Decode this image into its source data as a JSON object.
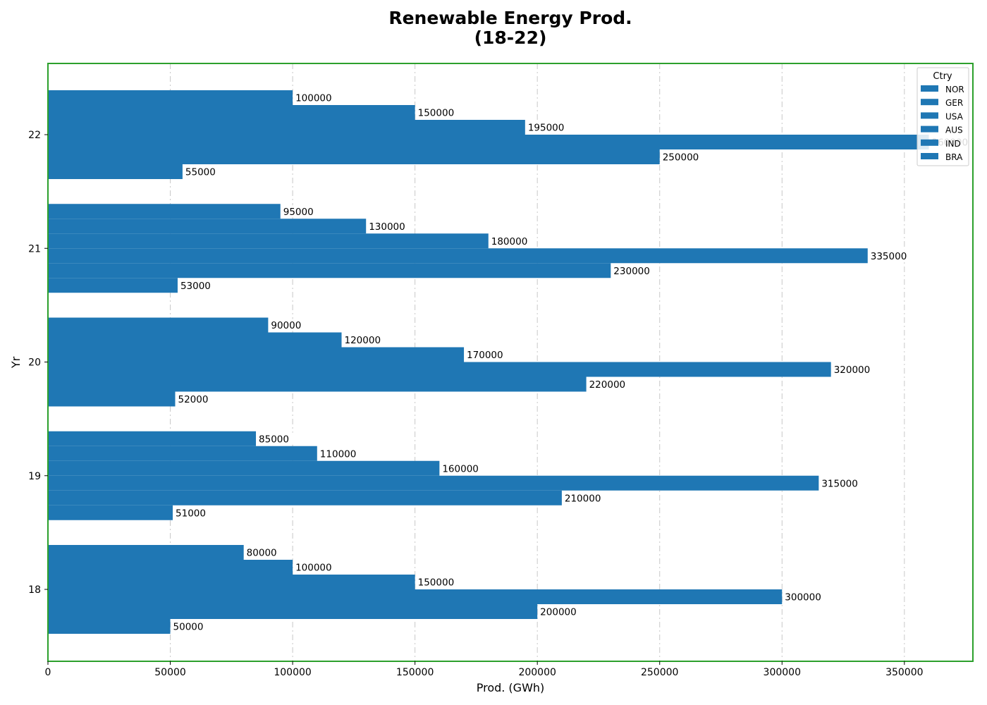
{
  "chart_data": {
    "type": "bar",
    "orientation": "horizontal",
    "title_lines": [
      "Renewable Energy Prod.",
      "(18-22)"
    ],
    "xlabel": "Prod. (GWh)",
    "ylabel": "Yr",
    "xlim": [
      0,
      378000
    ],
    "x_ticks": [
      0,
      50000,
      100000,
      150000,
      200000,
      250000,
      300000,
      350000
    ],
    "categories": [
      "18",
      "19",
      "20",
      "21",
      "22"
    ],
    "grid": "vertical dashed",
    "legend": {
      "title": "Ctry",
      "placement": "top-right"
    },
    "bar_color": "#1f77b4",
    "frame_color": "#2ca02c",
    "series": [
      {
        "name": "NOR",
        "values": [
          80000,
          85000,
          90000,
          95000,
          100000
        ]
      },
      {
        "name": "GER",
        "values": [
          100000,
          110000,
          120000,
          130000,
          150000
        ]
      },
      {
        "name": "USA",
        "values": [
          150000,
          160000,
          170000,
          180000,
          195000
        ]
      },
      {
        "name": "AUS",
        "values": [
          300000,
          315000,
          320000,
          335000,
          360000
        ]
      },
      {
        "name": "IND",
        "values": [
          200000,
          210000,
          220000,
          230000,
          250000
        ]
      },
      {
        "name": "BRA",
        "values": [
          50000,
          51000,
          52000,
          53000,
          55000
        ]
      }
    ]
  }
}
